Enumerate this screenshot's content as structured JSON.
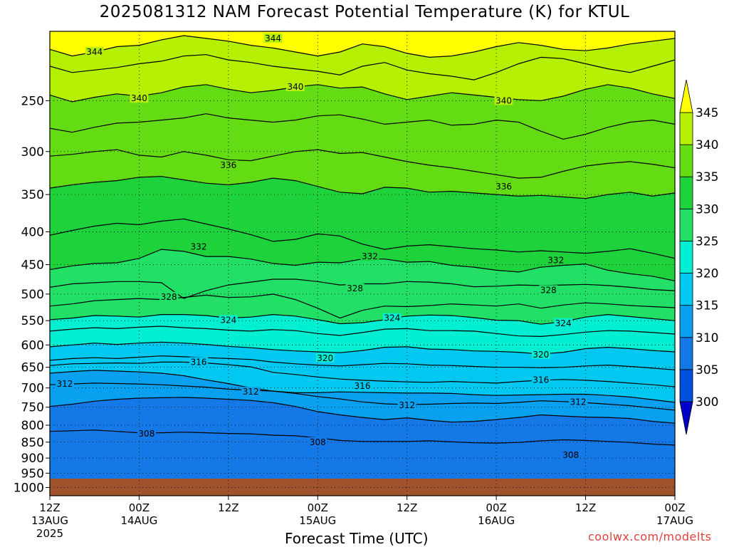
{
  "title": "2025081312 NAM Forecast Potential Temperature (K) for KTUL",
  "credit": "coolwx.com/modelts",
  "chart_data": {
    "type": "heatmap",
    "title": "2025081312 NAM Forecast Potential Temperature (K) for KTUL",
    "xlabel": "Forecast Time (UTC)",
    "ylabel": "",
    "units": "K",
    "y_axis": {
      "scale": "log-pressure",
      "range_hpa": [
        1030,
        195
      ],
      "ticks": [
        "250",
        "300",
        "350",
        "400",
        "450",
        "500",
        "550",
        "600",
        "650",
        "700",
        "750",
        "800",
        "850",
        "900",
        "950",
        "1000"
      ]
    },
    "x_axis": {
      "range_hours": [
        0,
        84
      ],
      "ticks": [
        {
          "hour": 0,
          "time": "12Z",
          "date": "13AUG",
          "year": "2025"
        },
        {
          "hour": 12,
          "time": "00Z",
          "date": "14AUG",
          "year": ""
        },
        {
          "hour": 24,
          "time": "12Z",
          "date": "",
          "year": ""
        },
        {
          "hour": 36,
          "time": "00Z",
          "date": "15AUG",
          "year": ""
        },
        {
          "hour": 48,
          "time": "12Z",
          "date": "",
          "year": ""
        },
        {
          "hour": 60,
          "time": "00Z",
          "date": "16AUG",
          "year": ""
        },
        {
          "hour": 72,
          "time": "12Z",
          "date": "",
          "year": ""
        },
        {
          "hour": 84,
          "time": "00Z",
          "date": "17AUG",
          "year": ""
        }
      ]
    },
    "grid": true,
    "ground_below_hpa": 1002,
    "fill_levels": [
      300,
      305,
      310,
      315,
      320,
      325,
      330,
      335,
      340,
      345
    ],
    "colorbar_labels": [
      "345",
      "340",
      "335",
      "330",
      "325",
      "320",
      "315",
      "310",
      "305",
      "300"
    ],
    "colors": {
      "below_300": "#0000c8",
      "300_305": "#0050e0",
      "305_310": "#1478e6",
      "310_315": "#0aa0f0",
      "315_320": "#00c8f0",
      "320_325": "#00eed2",
      "325_330": "#22e066",
      "330_335": "#1ed23c",
      "335_340": "#64dc14",
      "340_345": "#b4f000",
      "above_345": "#ffff00",
      "ground": "#a0522d"
    },
    "contour_interval_k": 2,
    "contour_labels": [
      {
        "hour": 6,
        "hpa": 210,
        "value": "344"
      },
      {
        "hour": 30,
        "hpa": 200,
        "value": "344"
      },
      {
        "hour": 12,
        "hpa": 248,
        "value": "340"
      },
      {
        "hour": 33,
        "hpa": 238,
        "value": "340"
      },
      {
        "hour": 61,
        "hpa": 250,
        "value": "340"
      },
      {
        "hour": 24,
        "hpa": 315,
        "value": "336"
      },
      {
        "hour": 61,
        "hpa": 340,
        "value": "336"
      },
      {
        "hour": 20,
        "hpa": 422,
        "value": "332"
      },
      {
        "hour": 43,
        "hpa": 437,
        "value": "332"
      },
      {
        "hour": 68,
        "hpa": 443,
        "value": "332"
      },
      {
        "hour": 16,
        "hpa": 505,
        "value": "328"
      },
      {
        "hour": 41,
        "hpa": 490,
        "value": "328"
      },
      {
        "hour": 67,
        "hpa": 493,
        "value": "328"
      },
      {
        "hour": 24,
        "hpa": 549,
        "value": "324"
      },
      {
        "hour": 46,
        "hpa": 545,
        "value": "324"
      },
      {
        "hour": 69,
        "hpa": 555,
        "value": "324"
      },
      {
        "hour": 20,
        "hpa": 638,
        "value": "316"
      },
      {
        "hour": 37,
        "hpa": 629,
        "value": "320"
      },
      {
        "hour": 66,
        "hpa": 621,
        "value": "320"
      },
      {
        "hour": 42,
        "hpa": 695,
        "value": "316"
      },
      {
        "hour": 66,
        "hpa": 680,
        "value": "316"
      },
      {
        "hour": 2,
        "hpa": 690,
        "value": "312"
      },
      {
        "hour": 27,
        "hpa": 710,
        "value": "312"
      },
      {
        "hour": 48,
        "hpa": 745,
        "value": "312"
      },
      {
        "hour": 71,
        "hpa": 736,
        "value": "312"
      },
      {
        "hour": 13,
        "hpa": 825,
        "value": "308"
      },
      {
        "hour": 36,
        "hpa": 850,
        "value": "308"
      },
      {
        "hour": 70,
        "hpa": 891,
        "value": "308"
      }
    ],
    "isotherms": [
      {
        "value": 344,
        "hpa": [
          208,
          213,
          210,
          206,
          205,
          201,
          198,
          200,
          202,
          205,
          207,
          210,
          213,
          210,
          204,
          206,
          211,
          214,
          213,
          210,
          206,
          203,
          205,
          208,
          209,
          207,
          204,
          202,
          200
        ]
      },
      {
        "value": 342,
        "hpa": [
          221,
          226,
          224,
          222,
          219,
          217,
          213,
          212,
          216,
          218,
          221,
          223,
          225,
          228,
          221,
          218,
          224,
          227,
          229,
          232,
          226,
          219,
          214,
          215,
          219,
          223,
          226,
          221,
          216
        ]
      },
      {
        "value": 340,
        "hpa": [
          245,
          251,
          247,
          244,
          246,
          243,
          238,
          236,
          240,
          243,
          241,
          238,
          236,
          239,
          238,
          244,
          249,
          246,
          243,
          245,
          247,
          249,
          250,
          246,
          240,
          236,
          239,
          244,
          248
        ]
      },
      {
        "value": 338,
        "hpa": [
          276,
          280,
          275,
          271,
          270,
          268,
          266,
          262,
          266,
          268,
          270,
          268,
          264,
          263,
          267,
          272,
          270,
          268,
          273,
          272,
          268,
          270,
          279,
          287,
          282,
          275,
          270,
          268,
          272
        ]
      },
      {
        "value": 336,
        "hpa": [
          305,
          303,
          300,
          298,
          304,
          306,
          300,
          304,
          309,
          310,
          305,
          300,
          298,
          302,
          301,
          306,
          311,
          315,
          318,
          322,
          326,
          330,
          329,
          322,
          316,
          313,
          311,
          314,
          318
        ]
      },
      {
        "value": 334,
        "hpa": [
          342,
          338,
          335,
          333,
          329,
          328,
          332,
          336,
          338,
          335,
          330,
          333,
          340,
          347,
          349,
          341,
          342,
          347,
          346,
          348,
          350,
          352,
          351,
          353,
          355,
          350,
          347,
          352,
          348
        ]
      },
      {
        "value": 332,
        "hpa": [
          405,
          398,
          392,
          388,
          390,
          385,
          382,
          389,
          396,
          404,
          414,
          411,
          403,
          406,
          418,
          426,
          421,
          419,
          422,
          425,
          427,
          430,
          428,
          430,
          432,
          429,
          425,
          432,
          440
        ]
      },
      {
        "value": 330,
        "hpa": [
          458,
          452,
          448,
          447,
          440,
          426,
          429,
          437,
          437,
          441,
          448,
          451,
          446,
          447,
          441,
          441,
          446,
          445,
          451,
          454,
          459,
          462,
          454,
          451,
          449,
          459,
          465,
          469,
          477
        ]
      },
      {
        "value": 328,
        "hpa": [
          488,
          482,
          480,
          478,
          478,
          480,
          508,
          494,
          484,
          479,
          474,
          474,
          478,
          484,
          482,
          482,
          478,
          479,
          482,
          487,
          486,
          484,
          485,
          484,
          483,
          485,
          488,
          492,
          494
        ]
      },
      {
        "value": 326,
        "hpa": [
          522,
          518,
          512,
          510,
          508,
          510,
          506,
          502,
          506,
          505,
          500,
          510,
          526,
          545,
          530,
          522,
          523,
          521,
          518,
          520,
          522,
          518,
          526,
          520,
          516,
          518,
          521,
          523,
          525
        ]
      },
      {
        "value": 324,
        "hpa": [
          548,
          545,
          540,
          541,
          543,
          538,
          538,
          540,
          545,
          543,
          538,
          541,
          548,
          556,
          554,
          548,
          541,
          539,
          540,
          544,
          549,
          550,
          557,
          552,
          543,
          538,
          542,
          546,
          550
        ]
      },
      {
        "value": 322,
        "hpa": [
          571,
          567,
          564,
          566,
          563,
          561,
          564,
          566,
          569,
          571,
          568,
          570,
          576,
          580,
          574,
          567,
          566,
          570,
          570,
          571,
          576,
          581,
          582,
          578,
          573,
          570,
          571,
          574,
          577
        ]
      },
      {
        "value": 320,
        "hpa": [
          604,
          600,
          596,
          599,
          596,
          594,
          596,
          599,
          603,
          606,
          610,
          613,
          615,
          617,
          612,
          605,
          604,
          609,
          610,
          613,
          614,
          616,
          620,
          616,
          608,
          605,
          608,
          612,
          615
        ]
      },
      {
        "value": 318,
        "hpa": [
          634,
          630,
          628,
          630,
          627,
          624,
          626,
          628,
          630,
          632,
          638,
          642,
          645,
          647,
          644,
          641,
          642,
          645,
          646,
          648,
          650,
          650,
          651,
          650,
          647,
          645,
          648,
          652,
          656
        ]
      },
      {
        "value": 316,
        "hpa": [
          646,
          642,
          641,
          640,
          641,
          638,
          638,
          640,
          644,
          649,
          662,
          667,
          673,
          678,
          681,
          683,
          685,
          686,
          684,
          686,
          688,
          684,
          681,
          679,
          681,
          684,
          688,
          692,
          697
        ]
      },
      {
        "value": 314,
        "hpa": [
          664,
          660,
          657,
          659,
          661,
          664,
          670,
          680,
          689,
          700,
          708,
          712,
          712,
          710,
          711,
          712,
          713,
          713,
          714,
          717,
          719,
          718,
          717,
          716,
          716,
          719,
          723,
          730,
          737
        ]
      },
      {
        "value": 312,
        "hpa": [
          692,
          690,
          688,
          689,
          690,
          692,
          695,
          698,
          703,
          706,
          708,
          714,
          722,
          728,
          736,
          741,
          743,
          742,
          740,
          739,
          740,
          737,
          733,
          735,
          738,
          742,
          746,
          752,
          758
        ]
      },
      {
        "value": 310,
        "hpa": [
          748,
          742,
          734,
          729,
          726,
          725,
          724,
          726,
          729,
          732,
          738,
          748,
          762,
          771,
          778,
          784,
          779,
          786,
          791,
          789,
          784,
          778,
          771,
          774,
          777,
          778,
          781,
          789,
          794
        ]
      },
      {
        "value": 308,
        "hpa": [
          818,
          816,
          814,
          818,
          822,
          822,
          820,
          822,
          824,
          825,
          829,
          831,
          837,
          845,
          848,
          848,
          848,
          846,
          849,
          852,
          853,
          851,
          846,
          843,
          845,
          848,
          851,
          856,
          859
        ]
      }
    ]
  }
}
